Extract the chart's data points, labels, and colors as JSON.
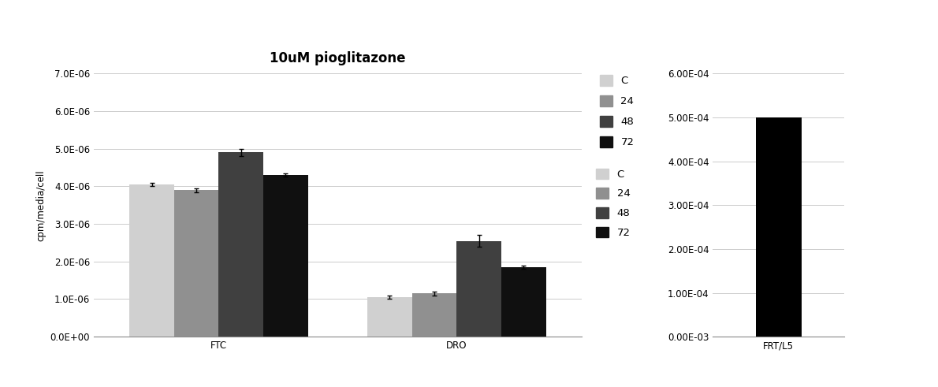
{
  "title": "10uM pioglitazone",
  "left_chart": {
    "groups": [
      "FTC",
      "DRO"
    ],
    "series": [
      "C",
      "24",
      "48",
      "72"
    ],
    "colors": [
      "#d0d0d0",
      "#909090",
      "#404040",
      "#101010"
    ],
    "values": {
      "FTC": [
        4.05e-06,
        3.9e-06,
        4.9e-06,
        4.3e-06
      ],
      "DRO": [
        1.05e-06,
        1.15e-06,
        2.55e-06,
        1.85e-06
      ]
    },
    "errors": {
      "FTC": [
        5e-08,
        5e-08,
        1e-07,
        5e-08
      ],
      "DRO": [
        4e-08,
        5e-08,
        1.5e-07,
        4e-08
      ]
    },
    "ylabel": "cpm/media/cell",
    "ylim": [
      0,
      7e-06
    ],
    "yticks": [
      0,
      1e-06,
      2e-06,
      3e-06,
      4e-06,
      5e-06,
      6e-06,
      7e-06
    ],
    "ytick_labels": [
      "0.0E+00",
      "1.0E-06",
      "2.0E-06",
      "3.0E-06",
      "4.0E-06",
      "5.0E-06",
      "6.0E-06",
      "7.0E-06"
    ]
  },
  "right_chart": {
    "groups": [
      "FRT/L5"
    ],
    "values": [
      0.0005
    ],
    "color": "#000000",
    "ylim": [
      0,
      0.0006
    ],
    "yticks": [
      0,
      0.0001,
      0.0002,
      0.0003,
      0.0004,
      0.0005,
      0.0006
    ],
    "ytick_labels": [
      "0.00E-03",
      "1.00E-04",
      "2.00E-04",
      "3.00E-04",
      "4.00E-04",
      "5.00E-04",
      "6.00E-04"
    ]
  },
  "legend_labels": [
    "C",
    "24",
    "48",
    "72"
  ],
  "legend_colors": [
    "#d0d0d0",
    "#909090",
    "#404040",
    "#101010"
  ],
  "background_color": "#ffffff",
  "font_size": 8.5
}
